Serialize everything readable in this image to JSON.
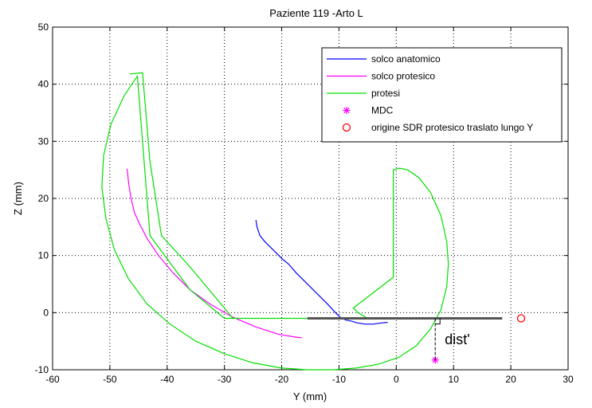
{
  "chart_data": {
    "type": "line",
    "title": "Paziente 119 -Arto L",
    "xlabel": "Y (mm)",
    "ylabel": "Z (mm)",
    "xlim": [
      -60,
      30
    ],
    "ylim": [
      -10,
      50
    ],
    "xticks": [
      -60,
      -50,
      -40,
      -30,
      -20,
      -10,
      0,
      10,
      20,
      30
    ],
    "yticks": [
      -10,
      0,
      10,
      20,
      30,
      40,
      50
    ],
    "grid": true,
    "legend_position": "top-right",
    "series": [
      {
        "name": "solco anatomico",
        "color": "#0000ff",
        "style": "line",
        "x": [
          -24.5,
          -24.3,
          -23.8,
          -23.0,
          -22.0,
          -21.0,
          -20.0,
          -18.8,
          -17.5,
          -16.5,
          -15.0,
          -13.5,
          -12.0,
          -10.8,
          -9.8,
          -8.8,
          -7.8,
          -6.8,
          -5.5,
          -4.0,
          -2.5,
          -1.5
        ],
        "y": [
          16.2,
          15.0,
          13.5,
          12.5,
          11.5,
          10.5,
          9.5,
          8.5,
          7.0,
          6.0,
          4.5,
          3.0,
          1.5,
          0.2,
          -0.8,
          -1.3,
          -1.5,
          -1.8,
          -2.0,
          -2.0,
          -1.8,
          -1.7
        ]
      },
      {
        "name": "solco protesico",
        "color": "#ff00ff",
        "style": "line",
        "x": [
          -47.0,
          -46.7,
          -46.3,
          -45.7,
          -44.8,
          -43.5,
          -41.5,
          -39.0,
          -36.0,
          -32.5,
          -28.5,
          -24.5,
          -20.5,
          -17.5,
          -16.5
        ],
        "y": [
          25.2,
          22.5,
          20.0,
          17.5,
          15.5,
          13.0,
          10.0,
          7.0,
          4.0,
          1.5,
          -0.8,
          -2.5,
          -3.8,
          -4.3,
          -4.4
        ]
      },
      {
        "name": "protesi",
        "color": "#00e000",
        "style": "line",
        "x": [
          -46.5,
          -44.3,
          -43.0,
          -41.0,
          -36.0,
          -28.5,
          -5.0,
          -6.7,
          -7.5,
          -0.5,
          -0.5,
          0.5,
          2.0,
          4.0,
          6.0,
          7.8,
          8.8,
          9.1,
          8.8,
          7.8,
          6.0,
          3.5,
          0.5,
          -3.0,
          -7.0,
          -11.0,
          -15.5,
          -20.0,
          -25.0,
          -30.0,
          -35.0,
          -39.5,
          -43.5,
          -46.8,
          -49.2,
          -50.7,
          -51.4,
          -51.1,
          -49.8,
          -47.5,
          -45.2,
          -43.0,
          -36.0,
          -30.0,
          -28.5
        ],
        "y": [
          41.8,
          42.0,
          26.5,
          13.5,
          8.0,
          -1.0,
          -1.0,
          0.0,
          0.8,
          6.2,
          25.0,
          25.3,
          25.0,
          23.6,
          21.0,
          17.0,
          12.5,
          8.5,
          4.5,
          0.5,
          -2.8,
          -5.8,
          -7.8,
          -9.0,
          -9.7,
          -10.0,
          -10.0,
          -9.7,
          -8.8,
          -7.2,
          -5.0,
          -2.0,
          1.5,
          6.0,
          11.0,
          16.5,
          22.0,
          27.5,
          33.0,
          38.0,
          41.4,
          13.5,
          4.0,
          -1.0,
          -1.0
        ]
      },
      {
        "name": "MDC",
        "color": "#ff00ff",
        "style": "marker-asterisk",
        "x": [
          6.8
        ],
        "y": [
          -8.3
        ]
      },
      {
        "name": "origine SDR protesico traslato lungo Y",
        "color": "#ff0000",
        "style": "marker-circle",
        "x": [
          21.8
        ],
        "y": [
          -1.0
        ]
      }
    ],
    "annotations": {
      "reference_line": {
        "x": [
          -15.5,
          18.5
        ],
        "y": [
          -1.0,
          -1.0
        ],
        "color": "#555555"
      },
      "distance_marker": {
        "x": 6.8,
        "y_from": -1.0,
        "y_to": -8.3,
        "label": "dist'"
      }
    }
  }
}
